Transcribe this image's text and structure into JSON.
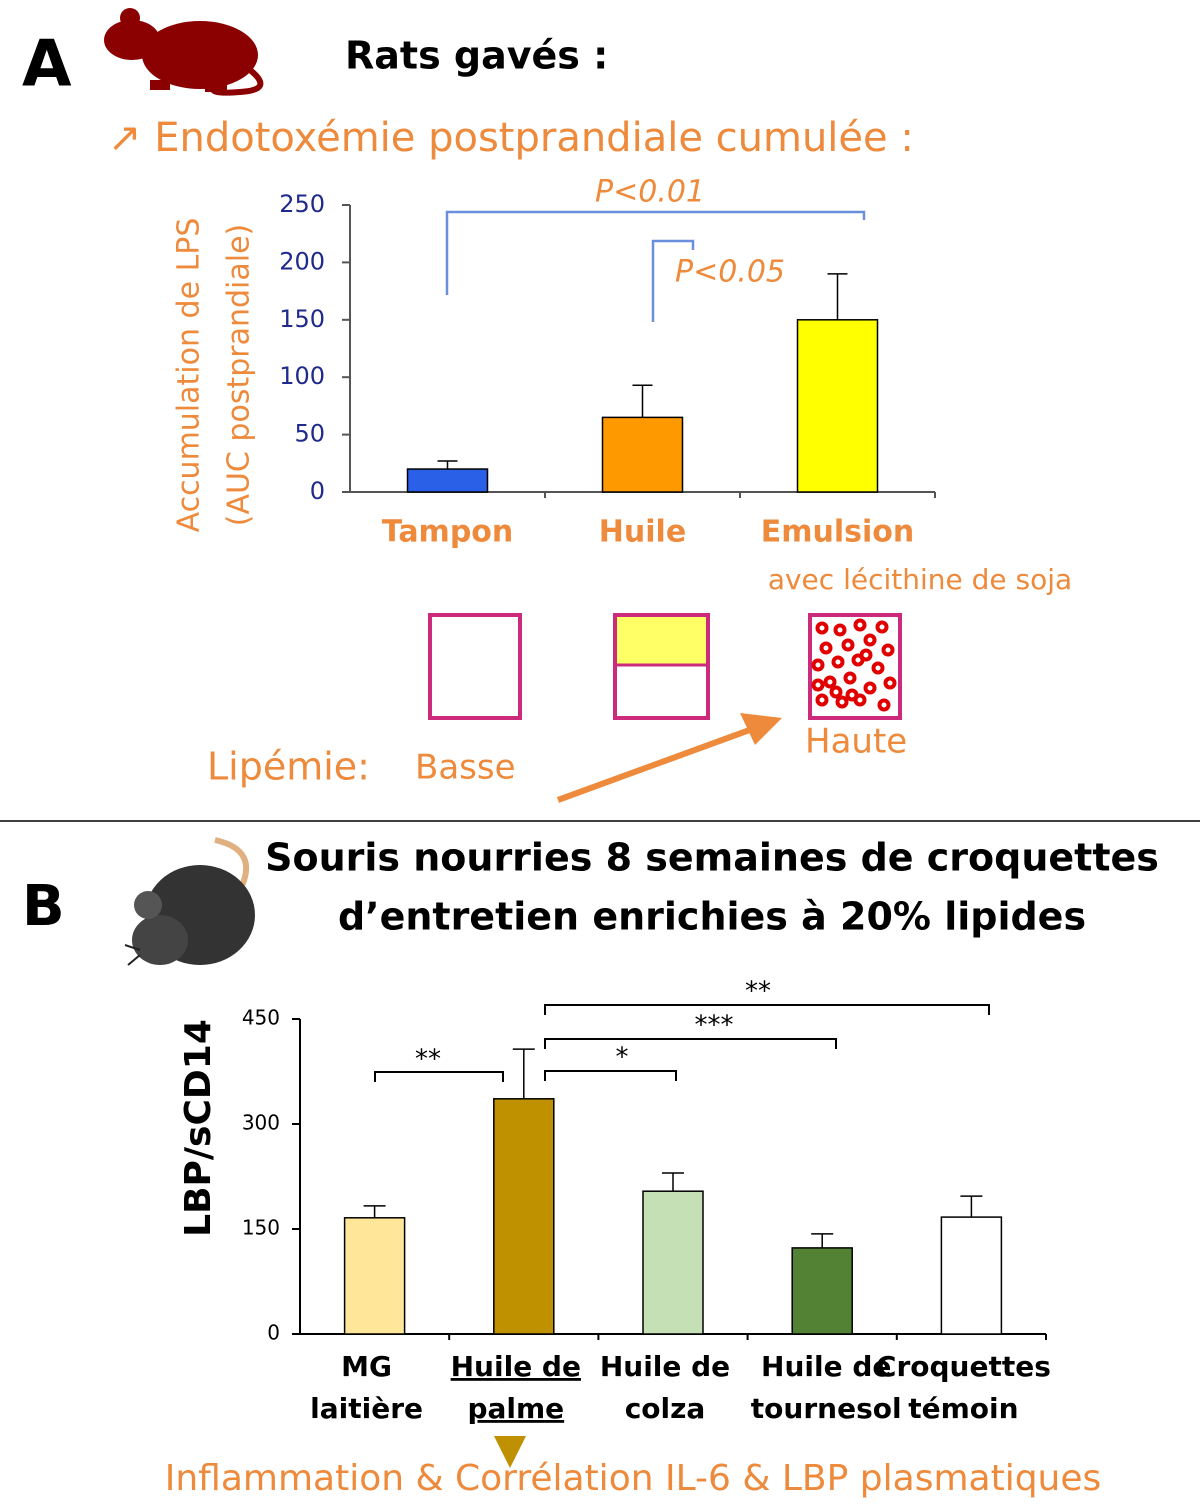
{
  "panel_a": {
    "label": "A",
    "heading": "Rats gavés :",
    "subheading": "↗ Endotoxémie postprandiale cumulée :",
    "lipemia": {
      "label": "Lipémie:",
      "low": "Basse",
      "high": "Haute"
    }
  },
  "panel_b": {
    "label": "B",
    "heading": [
      "Souris nourries 8 semaines de croquettes",
      "d’entretien enrichies à 20% lipides"
    ],
    "footer": "Inflammation & Corrélation IL-6 & LBP plasmatiques"
  },
  "chart_data": [
    {
      "type": "bar",
      "ylabel": [
        "Accumulation de LPS",
        "(AUC postprandiale)"
      ],
      "categories": [
        "Tampon",
        "Huile",
        "Emulsion"
      ],
      "emulsion_note": "avec lécithine de soja",
      "values": [
        20,
        65,
        150
      ],
      "errors": [
        7,
        28,
        40
      ],
      "colors": [
        "#2a5fe8",
        "#ff9900",
        "#ffff00"
      ],
      "ylim": [
        0,
        250
      ],
      "yticks": [
        0,
        50,
        100,
        150,
        200,
        250
      ],
      "annotations": [
        "P<0.01",
        "P<0.05"
      ]
    },
    {
      "type": "bar",
      "ylabel": "LBP/sCD14",
      "categories": [
        [
          "MG",
          "laitière"
        ],
        [
          "Huile de",
          "palme"
        ],
        [
          "Huile de",
          "colza"
        ],
        [
          "Huile de",
          "tournesol"
        ],
        [
          "Croquettes",
          "témoin"
        ]
      ],
      "values": [
        166,
        336,
        204,
        123,
        167
      ],
      "errors": [
        17,
        71,
        26,
        20,
        30
      ],
      "colors": [
        "#ffe699",
        "#bf9000",
        "#c5e0b4",
        "#548235",
        "#ffffff"
      ],
      "ylim": [
        0,
        450
      ],
      "yticks": [
        0,
        150,
        300,
        450
      ],
      "annotations": [
        "**",
        "*",
        "***",
        "**"
      ]
    }
  ]
}
